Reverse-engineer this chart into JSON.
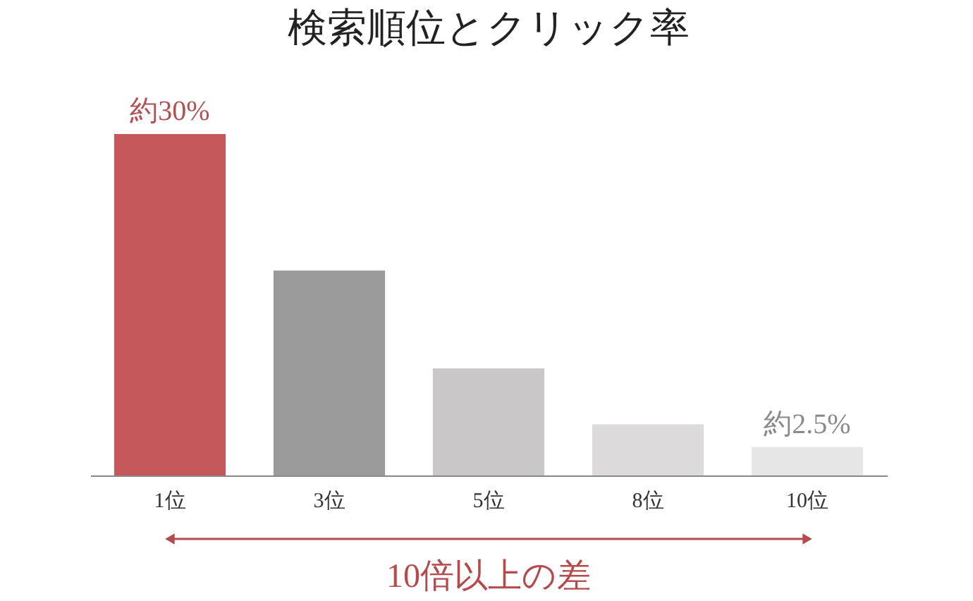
{
  "chart_data": {
    "type": "bar",
    "title": "検索順位とクリック率",
    "categories": [
      "1位",
      "3位",
      "5位",
      "8位",
      "10位"
    ],
    "values": [
      30,
      18,
      9.4,
      4.5,
      2.5
    ],
    "colors": [
      "#c4585a",
      "#9c9b9b",
      "#c9c7c7",
      "#dcdada",
      "#e7e6e6"
    ],
    "value_labels": [
      "約30%",
      null,
      null,
      null,
      "約2.5%"
    ],
    "annotations": [
      "10倍以上の差"
    ],
    "grid": false
  }
}
